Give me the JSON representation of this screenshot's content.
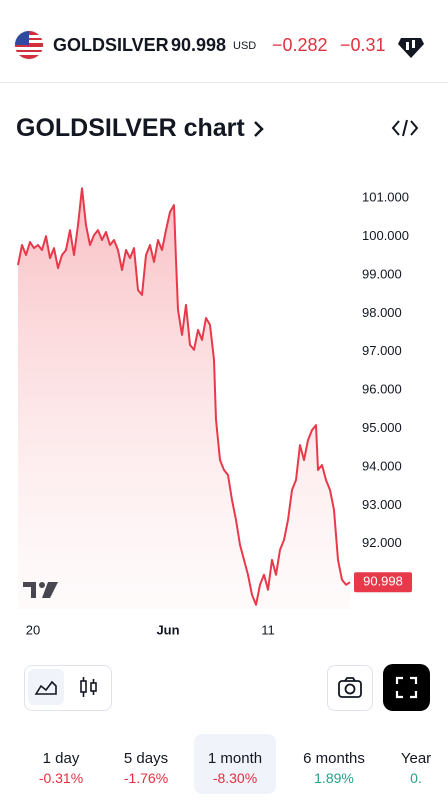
{
  "header": {
    "symbol": "GOLDSILVER",
    "price": "90.998",
    "currency": "USD",
    "change": "−0.282",
    "change_percent": "−0.31"
  },
  "chart_data": {
    "type": "line",
    "title": "GOLDSILVER chart",
    "x": [
      0,
      0.4,
      0.8,
      1.2,
      1.6,
      2,
      2.4,
      2.8,
      3.2,
      3.6,
      4,
      4.4,
      4.8,
      5.2,
      5.6,
      6,
      6.4,
      6.8,
      7.2,
      7.6,
      8,
      8.4,
      8.8,
      9.2,
      9.6,
      10,
      10.4,
      10.8,
      11.2,
      11.6,
      12,
      12.4,
      12.8,
      13.2,
      13.6,
      14,
      14.4,
      14.8,
      15.2,
      15.6,
      15.8,
      16,
      16.4,
      16.8,
      17.2,
      17.6,
      18,
      18.4,
      18.8,
      19.2,
      19.6,
      19.8,
      20.2,
      20.6,
      21,
      21.4,
      21.8,
      22.2,
      22.6,
      23,
      23.4,
      23.8,
      24.2,
      24.6,
      25,
      25.4,
      25.8,
      26.2,
      26.6,
      27,
      27.4,
      27.8,
      28.2,
      28.6,
      29,
      29.4,
      29.8,
      30,
      30.4,
      30.8,
      31.2,
      31.6,
      32,
      32.4,
      32.8,
      33.2
    ],
    "series": [
      {
        "color": "#e8394a",
        "values": [
          99.26,
          99.78,
          99.52,
          99.86,
          99.7,
          99.78,
          99.65,
          100.01,
          99.44,
          99.7,
          99.18,
          99.52,
          99.65,
          100.17,
          99.52,
          100.3,
          101.26,
          100.3,
          99.78,
          100.04,
          100.17,
          99.91,
          100.12,
          99.78,
          99.91,
          99.65,
          99.13,
          99.65,
          99.44,
          99.7,
          98.61,
          98.48,
          99.52,
          99.78,
          99.34,
          99.91,
          99.65,
          100.17,
          100.64,
          100.82,
          99.39,
          98.09,
          97.44,
          98.22,
          97.18,
          97.05,
          97.57,
          97.31,
          97.88,
          97.7,
          96.79,
          95.23,
          94.18,
          93.92,
          93.79,
          93.14,
          92.62,
          91.97,
          91.58,
          91.19,
          90.67,
          90.41,
          90.93,
          91.19,
          90.8,
          91.58,
          91.19,
          91.84,
          92.1,
          92.62,
          93.4,
          93.66,
          94.57,
          94.18,
          94.7,
          94.96,
          95.09,
          93.92,
          94.05,
          93.66,
          93.4,
          92.88,
          91.58,
          91.06,
          90.93,
          90.998
        ]
      }
    ],
    "last_price": {
      "value": 90.998,
      "label": "90.998"
    },
    "xlim": [
      0,
      33.2
    ],
    "xticks": [
      {
        "value": 1.5,
        "label": "20"
      },
      {
        "value": 15,
        "label": "Jun"
      },
      {
        "value": 25,
        "label": "11"
      }
    ],
    "ylim": [
      90.3,
      101.5
    ],
    "yticks": [
      {
        "value": 92,
        "label": "92.000"
      },
      {
        "value": 93,
        "label": "93.000"
      },
      {
        "value": 94,
        "label": "94.000"
      },
      {
        "value": 95,
        "label": "95.000"
      },
      {
        "value": 96,
        "label": "96.000"
      },
      {
        "value": 97,
        "label": "97.000"
      },
      {
        "value": 98,
        "label": "98.000"
      },
      {
        "value": 99,
        "label": "99.000"
      },
      {
        "value": 100,
        "label": "100.000"
      },
      {
        "value": 101,
        "label": "101.000"
      }
    ],
    "grid": false
  },
  "periods": [
    {
      "label": "1 day",
      "change": "-0.31%"
    },
    {
      "label": "5 days",
      "change": "-1.76%"
    },
    {
      "label": "1 month",
      "change": "-8.30%"
    },
    {
      "label": "6 months",
      "change": "1.89%"
    },
    {
      "label": "Year",
      "change": "0."
    }
  ]
}
